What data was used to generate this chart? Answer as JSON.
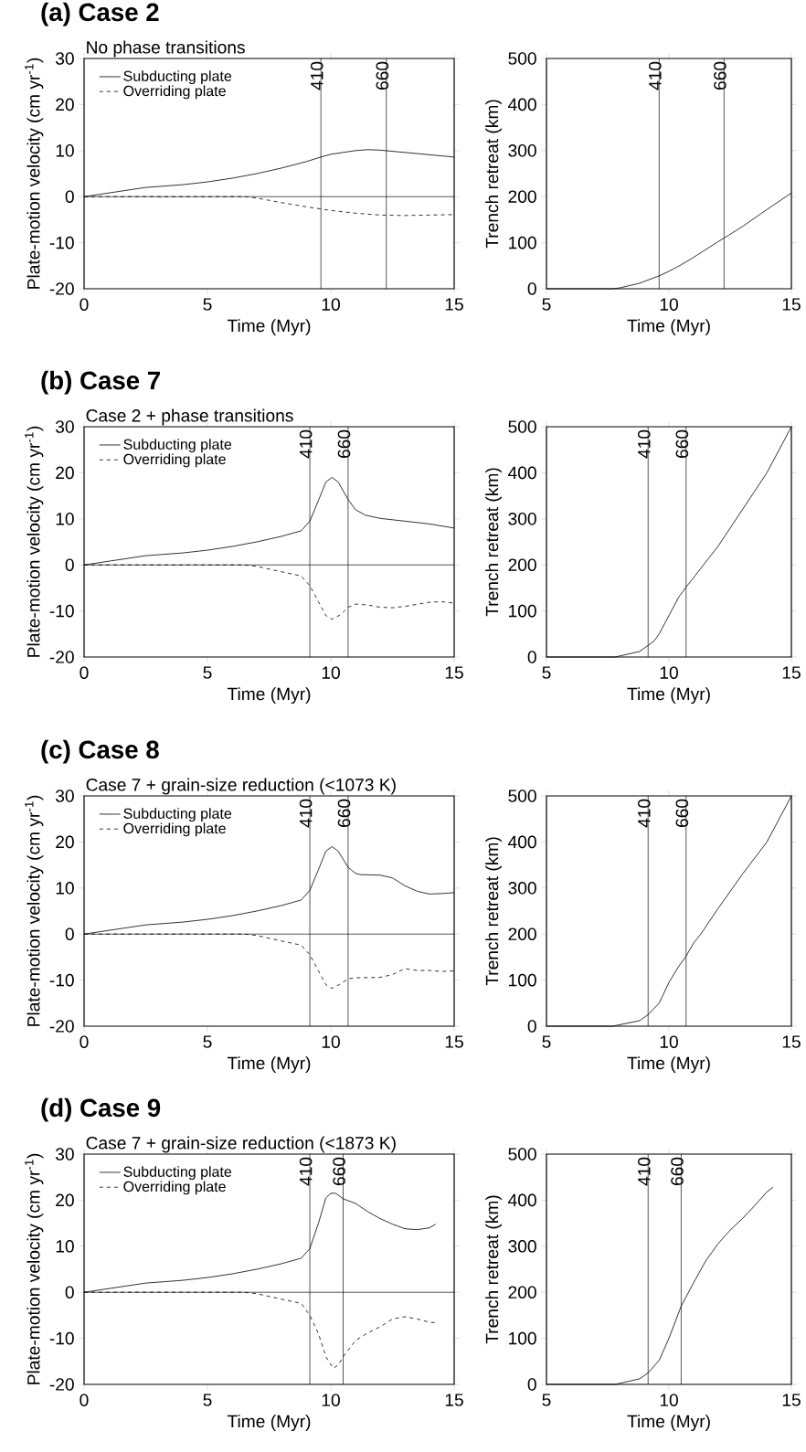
{
  "chart_data": [
    {
      "type": "line",
      "title": "(a) Case 2",
      "subtitle": "No phase transitions",
      "xlabel": "Time (Myr)",
      "ylabel": "Plate-motion velocity (cm yr$^{-1}$)",
      "xlim": [
        0,
        15
      ],
      "ylim": [
        -20,
        30
      ],
      "xticks": [
        0,
        5,
        10,
        15
      ],
      "yticks": [
        -20,
        -10,
        0,
        10,
        20,
        30
      ],
      "legend": "top left",
      "grid": false,
      "marker": "none",
      "series": [
        {
          "name": "Subducting plate",
          "color": "#000000",
          "line_style": "solid",
          "x": [
            0,
            1,
            2,
            2.5,
            3,
            4,
            5,
            6,
            7,
            8,
            9,
            9.6,
            10,
            11,
            11.5,
            12,
            13,
            14,
            15
          ],
          "values": [
            0,
            0.8,
            1.6,
            2.0,
            2.2,
            2.6,
            3.2,
            4.0,
            5.0,
            6.2,
            7.6,
            8.6,
            9.2,
            10.0,
            10.2,
            10.1,
            9.6,
            9.1,
            8.6
          ]
        },
        {
          "name": "Overriding plate",
          "color": "#000000",
          "line_style": "dashed",
          "x": [
            0,
            6,
            6.5,
            7,
            7.5,
            8,
            9,
            10,
            11,
            12,
            13,
            14,
            15
          ],
          "values": [
            0,
            0,
            0,
            -0.3,
            -0.8,
            -1.3,
            -2.2,
            -3.0,
            -3.6,
            -4.0,
            -4.1,
            -4.0,
            -3.9
          ]
        }
      ],
      "ref_lines": [
        {
          "axis": "x",
          "value": 9.6,
          "label": null
        },
        {
          "axis": "x",
          "value": 12.25,
          "label": null
        },
        {
          "axis": "y",
          "value": 0,
          "label": null
        }
      ],
      "annotations": [
        {
          "text": "410",
          "x": 9.6,
          "y": 30
        },
        {
          "text": "660",
          "x": 12.25,
          "y": 30
        }
      ]
    },
    {
      "type": "line",
      "xlabel": "Time (Myr)",
      "ylabel": "Trench retreat (km)",
      "xlim": [
        5,
        15
      ],
      "ylim": [
        0,
        500
      ],
      "xticks": [
        5,
        10,
        15
      ],
      "yticks": [
        0,
        100,
        200,
        300,
        400,
        500
      ],
      "grid": false,
      "marker": "none",
      "series": [
        {
          "color": "#000000",
          "line_style": "solid",
          "x": [
            5,
            7.7,
            8,
            8.8,
            9.6,
            10,
            10.5,
            11,
            11.5,
            12,
            12.25,
            13,
            14,
            15
          ],
          "values": [
            0,
            0,
            2,
            12,
            28,
            38,
            52,
            68,
            85,
            102,
            110,
            135,
            172,
            208
          ]
        }
      ],
      "ref_lines": [
        {
          "axis": "x",
          "value": 9.6,
          "label": null
        },
        {
          "axis": "x",
          "value": 12.25,
          "label": null
        }
      ],
      "annotations": [
        {
          "text": "410",
          "x": 9.6,
          "y": 500
        },
        {
          "text": "660",
          "x": 12.25,
          "y": 500
        }
      ]
    },
    {
      "type": "line",
      "title": "(b) Case 7",
      "subtitle": "Case 2 + phase transitions",
      "xlabel": "Time (Myr)",
      "ylabel": "Plate-motion velocity (cm yr$^{-1}$)",
      "xlim": [
        0,
        15
      ],
      "ylim": [
        -20,
        30
      ],
      "xticks": [
        0,
        5,
        10,
        15
      ],
      "yticks": [
        -20,
        -10,
        0,
        10,
        20,
        30
      ],
      "legend": "top left",
      "grid": false,
      "marker": "none",
      "series": [
        {
          "name": "Subducting plate",
          "color": "#000000",
          "line_style": "solid",
          "x": [
            0,
            1,
            2,
            2.5,
            4,
            5,
            6,
            7,
            8,
            8.8,
            9.15,
            9.5,
            9.8,
            10.05,
            10.3,
            10.7,
            11,
            11.4,
            12,
            13,
            14,
            15
          ],
          "values": [
            0,
            0.8,
            1.6,
            2.0,
            2.6,
            3.2,
            4.0,
            5.0,
            6.2,
            7.4,
            9.5,
            14,
            18,
            19,
            18,
            14.2,
            12,
            10.8,
            10.1,
            9.5,
            8.9,
            8.0
          ]
        },
        {
          "name": "Overriding plate",
          "color": "#000000",
          "line_style": "dashed",
          "x": [
            0,
            6.5,
            7,
            8,
            8.8,
            9.15,
            9.5,
            9.8,
            10.05,
            10.4,
            10.7,
            11,
            11.5,
            12,
            12.5,
            13,
            14,
            14.5,
            15
          ],
          "values": [
            0,
            0,
            -0.3,
            -1.5,
            -2.4,
            -4.5,
            -8,
            -11,
            -11.8,
            -10.8,
            -9.2,
            -8.5,
            -8.7,
            -9.2,
            -9.3,
            -9.0,
            -8.1,
            -8.0,
            -8.3
          ]
        }
      ],
      "ref_lines": [
        {
          "axis": "x",
          "value": 9.15,
          "label": null
        },
        {
          "axis": "x",
          "value": 10.7,
          "label": null
        },
        {
          "axis": "y",
          "value": 0,
          "label": null
        }
      ],
      "annotations": [
        {
          "text": "410",
          "x": 9.15,
          "y": 30
        },
        {
          "text": "660",
          "x": 10.7,
          "y": 30
        }
      ]
    },
    {
      "type": "line",
      "xlabel": "Time (Myr)",
      "ylabel": "Trench retreat (km)",
      "xlim": [
        5,
        15
      ],
      "ylim": [
        0,
        500
      ],
      "xticks": [
        5,
        10,
        15
      ],
      "yticks": [
        0,
        100,
        200,
        300,
        400,
        500
      ],
      "grid": false,
      "marker": "none",
      "series": [
        {
          "color": "#000000",
          "line_style": "solid",
          "x": [
            5,
            7.8,
            8.8,
            9.15,
            9.4,
            9.6,
            10,
            10.4,
            10.7,
            11,
            12,
            13,
            14,
            15
          ],
          "values": [
            0,
            0,
            12,
            25,
            35,
            50,
            90,
            130,
            152,
            172,
            240,
            320,
            400,
            500
          ]
        }
      ],
      "ref_lines": [
        {
          "axis": "x",
          "value": 9.15,
          "label": null
        },
        {
          "axis": "x",
          "value": 10.7,
          "label": null
        }
      ],
      "annotations": [
        {
          "text": "410",
          "x": 9.15,
          "y": 500
        },
        {
          "text": "660",
          "x": 10.7,
          "y": 500
        }
      ]
    },
    {
      "type": "line",
      "title": "(c) Case 8",
      "subtitle": "Case 7 + grain-size reduction (<1073 K)",
      "xlabel": "Time (Myr)",
      "ylabel": "Plate-motion velocity (cm yr$^{-1}$)",
      "xlim": [
        0,
        15
      ],
      "ylim": [
        -20,
        30
      ],
      "xticks": [
        0,
        5,
        10,
        15
      ],
      "yticks": [
        -20,
        -10,
        0,
        10,
        20,
        30
      ],
      "legend": "top left",
      "grid": false,
      "marker": "none",
      "series": [
        {
          "name": "Subducting plate",
          "color": "#000000",
          "line_style": "solid",
          "x": [
            0,
            1,
            2,
            2.5,
            4,
            5,
            6,
            7,
            8,
            8.8,
            9.15,
            9.5,
            9.8,
            10.05,
            10.3,
            10.7,
            11,
            11.2,
            12,
            12.5,
            13,
            13.5,
            14,
            14.5,
            15
          ],
          "values": [
            0,
            0.8,
            1.6,
            2.0,
            2.6,
            3.2,
            4.0,
            5.0,
            6.2,
            7.4,
            9.5,
            14,
            18,
            19,
            18,
            14.5,
            13.2,
            12.9,
            12.8,
            12.2,
            10.5,
            9.3,
            8.7,
            8.8,
            9.0
          ]
        },
        {
          "name": "Overriding plate",
          "color": "#000000",
          "line_style": "dashed",
          "x": [
            0,
            6.5,
            7,
            8,
            8.8,
            9.15,
            9.5,
            9.8,
            10.05,
            10.4,
            10.7,
            11,
            12,
            12.5,
            13,
            13.5,
            14,
            14.5,
            15
          ],
          "values": [
            0,
            0,
            -0.3,
            -1.5,
            -2.4,
            -4.5,
            -8,
            -11,
            -11.8,
            -10.8,
            -9.7,
            -9.5,
            -9.4,
            -8.8,
            -7.5,
            -7.9,
            -7.9,
            -8.1,
            -8.0
          ]
        }
      ],
      "ref_lines": [
        {
          "axis": "x",
          "value": 9.15,
          "label": null
        },
        {
          "axis": "x",
          "value": 10.7,
          "label": null
        },
        {
          "axis": "y",
          "value": 0,
          "label": null
        }
      ],
      "annotations": [
        {
          "text": "410",
          "x": 9.15,
          "y": 30
        },
        {
          "text": "660",
          "x": 10.7,
          "y": 30
        }
      ]
    },
    {
      "type": "line",
      "xlabel": "Time (Myr)",
      "ylabel": "Trench retreat (km)",
      "xlim": [
        5,
        15
      ],
      "ylim": [
        0,
        500
      ],
      "xticks": [
        5,
        10,
        15
      ],
      "yticks": [
        0,
        100,
        200,
        300,
        400,
        500
      ],
      "grid": false,
      "marker": "none",
      "series": [
        {
          "color": "#000000",
          "line_style": "solid",
          "x": [
            5,
            7.7,
            8.8,
            9.15,
            9.6,
            10,
            10.4,
            10.7,
            11,
            11.3,
            12,
            13,
            14,
            15
          ],
          "values": [
            0,
            0,
            12,
            25,
            50,
            95,
            130,
            152,
            180,
            200,
            255,
            330,
            400,
            500
          ]
        }
      ],
      "ref_lines": [
        {
          "axis": "x",
          "value": 9.15,
          "label": null
        },
        {
          "axis": "x",
          "value": 10.7,
          "label": null
        }
      ],
      "annotations": [
        {
          "text": "410",
          "x": 9.15,
          "y": 500
        },
        {
          "text": "660",
          "x": 10.7,
          "y": 500
        }
      ]
    },
    {
      "type": "line",
      "title": "(d) Case 9",
      "subtitle": "Case 7 + grain-size reduction (<1873 K)",
      "xlabel": "Time (Myr)",
      "ylabel": "Plate-motion velocity (cm yr$^{-1}$)",
      "xlim": [
        0,
        15
      ],
      "ylim": [
        -20,
        30
      ],
      "xticks": [
        0,
        5,
        10,
        15
      ],
      "yticks": [
        -20,
        -10,
        0,
        10,
        20,
        30
      ],
      "legend": "top left",
      "grid": false,
      "marker": "none",
      "series": [
        {
          "name": "Subducting plate",
          "color": "#000000",
          "line_style": "solid",
          "x": [
            0,
            1,
            2,
            2.5,
            4,
            5,
            6,
            7,
            8,
            8.8,
            9.15,
            9.5,
            9.8,
            10,
            10.2,
            10.5,
            11,
            11.5,
            12,
            12.5,
            13,
            13.5,
            14,
            14.25
          ],
          "values": [
            0,
            0.8,
            1.6,
            2.0,
            2.6,
            3.2,
            4.0,
            5.0,
            6.2,
            7.4,
            9.5,
            15,
            20.5,
            21.5,
            21.5,
            20.3,
            19.3,
            17.5,
            16,
            14.8,
            13.8,
            13.6,
            14.0,
            14.8
          ]
        },
        {
          "name": "Overriding plate",
          "color": "#000000",
          "line_style": "dashed",
          "x": [
            0,
            6.5,
            7,
            8,
            8.8,
            9.15,
            9.5,
            9.8,
            10.1,
            10.3,
            10.5,
            11,
            11.5,
            12,
            12.5,
            13,
            13.5,
            14,
            14.25
          ],
          "values": [
            0,
            0,
            -0.3,
            -1.5,
            -2.4,
            -5,
            -9,
            -14,
            -16.5,
            -15.8,
            -14,
            -10.5,
            -8.8,
            -7.5,
            -5.8,
            -5.3,
            -5.8,
            -6.5,
            -6.6
          ]
        }
      ],
      "ref_lines": [
        {
          "axis": "x",
          "value": 9.15,
          "label": null
        },
        {
          "axis": "x",
          "value": 10.5,
          "label": null
        },
        {
          "axis": "y",
          "value": 0,
          "label": null
        }
      ],
      "annotations": [
        {
          "text": "410",
          "x": 9.15,
          "y": 30
        },
        {
          "text": "660",
          "x": 10.5,
          "y": 30
        }
      ]
    },
    {
      "type": "line",
      "xlabel": "Time (Myr)",
      "ylabel": "Trench retreat (km)",
      "xlim": [
        5,
        15
      ],
      "ylim": [
        0,
        500
      ],
      "xticks": [
        5,
        10,
        15
      ],
      "yticks": [
        0,
        100,
        200,
        300,
        400,
        500
      ],
      "grid": false,
      "marker": "none",
      "series": [
        {
          "color": "#000000",
          "line_style": "solid",
          "x": [
            5,
            7.8,
            8.8,
            9.15,
            9.6,
            10,
            10.5,
            11,
            11.5,
            12,
            12.5,
            13,
            13.5,
            14,
            14.25
          ],
          "values": [
            0,
            0,
            12,
            25,
            52,
            100,
            170,
            220,
            268,
            305,
            335,
            360,
            388,
            418,
            428
          ]
        }
      ],
      "ref_lines": [
        {
          "axis": "x",
          "value": 9.15,
          "label": null
        },
        {
          "axis": "x",
          "value": 10.5,
          "label": null
        }
      ],
      "annotations": [
        {
          "text": "410",
          "x": 9.15,
          "y": 500
        },
        {
          "text": "660",
          "x": 10.5,
          "y": 500
        }
      ]
    }
  ]
}
